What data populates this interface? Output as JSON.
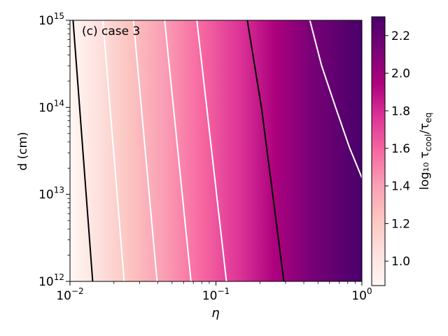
{
  "chart_data": {
    "type": "heatmap",
    "annotation": "(c) case 3",
    "xlabel": "η",
    "ylabel": "d (cm)",
    "colorbar_label": "log₁₀ τ",
    "colorbar_label_sub1": "cool",
    "colorbar_label_mid": "/τ",
    "colorbar_label_sub2": "eq",
    "x_scale": "log",
    "y_scale": "log",
    "xlim": [
      0.01,
      1
    ],
    "ylim": [
      1000000000000.0,
      1000000000000000.0
    ],
    "x_ticks": [
      {
        "base": "10",
        "exp": "−2",
        "value": 0.01
      },
      {
        "base": "10",
        "exp": "−1",
        "value": 0.1
      },
      {
        "base": "10",
        "exp": "0",
        "value": 1
      }
    ],
    "y_ticks": [
      {
        "base": "10",
        "exp": "12",
        "value": 1000000000000.0
      },
      {
        "base": "10",
        "exp": "13",
        "value": 10000000000000.0
      },
      {
        "base": "10",
        "exp": "14",
        "value": 100000000000000.0
      },
      {
        "base": "10",
        "exp": "15",
        "value": 1000000000000000.0
      }
    ],
    "colorbar_range": [
      0.87,
      2.3
    ],
    "colorbar_ticks": [
      "1.0",
      "1.2",
      "1.4",
      "1.6",
      "1.8",
      "2.0",
      "2.2"
    ],
    "colorbar_tick_values": [
      1.0,
      1.2,
      1.4,
      1.6,
      1.8,
      2.0,
      2.2
    ],
    "colormap": [
      "#fff7f3",
      "#fde0dd",
      "#fcc5c0",
      "#fa9fb5",
      "#f768a1",
      "#dd3497",
      "#ae017e",
      "#7a0177",
      "#49006a"
    ],
    "contours": [
      {
        "color": "#000000",
        "points": [
          [
            0.0105,
            1000000000000000.0
          ],
          [
            0.0143,
            1000000000000.0
          ]
        ]
      },
      {
        "color": "#ffffff",
        "points": [
          [
            0.0168,
            1000000000000000.0
          ],
          [
            0.0235,
            1000000000000.0
          ]
        ]
      },
      {
        "color": "#ffffff",
        "points": [
          [
            0.0272,
            1000000000000000.0
          ],
          [
            0.0395,
            1000000000000.0
          ]
        ]
      },
      {
        "color": "#ffffff",
        "points": [
          [
            0.0445,
            1000000000000000.0
          ],
          [
            0.0675,
            1000000000000.0
          ]
        ]
      },
      {
        "color": "#ffffff",
        "points": [
          [
            0.074,
            1000000000000000.0
          ],
          [
            0.118,
            1000000000000.0
          ]
        ]
      },
      {
        "color": "#000000",
        "points": [
          [
            0.164,
            1000000000000000.0
          ],
          [
            0.205,
            100000000000000.0
          ],
          [
            0.245,
            10000000000000.0
          ],
          [
            0.292,
            1000000000000.0
          ]
        ]
      },
      {
        "color": "#ffffff",
        "points": [
          [
            0.44,
            1000000000000000.0
          ],
          [
            0.53,
            300000000000000.0
          ],
          [
            0.66,
            100000000000000.0
          ],
          [
            0.82,
            35000000000000.0
          ],
          [
            1.0,
            15500000000000.0
          ]
        ]
      }
    ]
  }
}
